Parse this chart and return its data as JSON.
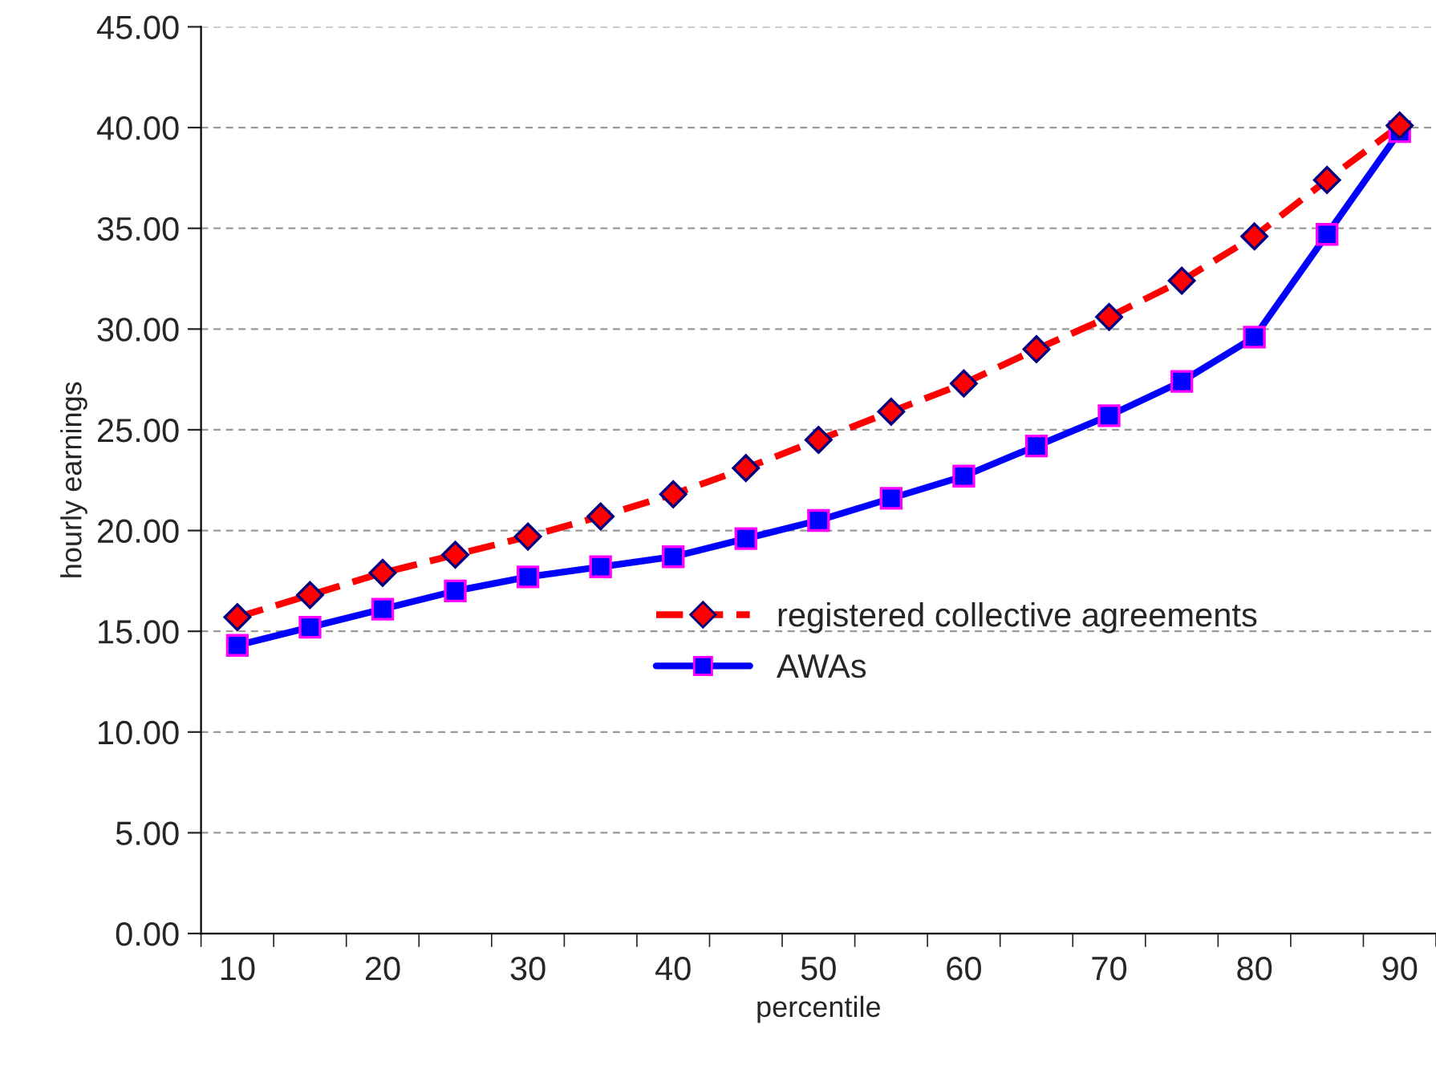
{
  "chart_data": {
    "type": "line",
    "xlabel": "percentile",
    "ylabel": "hourly earnings",
    "categories": [
      "10",
      null,
      "20",
      null,
      "30",
      null,
      "40",
      null,
      "50",
      null,
      "60",
      null,
      "70",
      null,
      "80",
      null,
      "90"
    ],
    "series": [
      {
        "name": "registered collective agreements",
        "color": "#ff0000",
        "line_style": "dashed",
        "marker": "diamond",
        "values": [
          15.7,
          16.8,
          17.9,
          18.8,
          19.7,
          20.7,
          21.8,
          23.1,
          24.5,
          25.9,
          27.3,
          29.0,
          30.6,
          32.4,
          34.6,
          37.4,
          40.1
        ]
      },
      {
        "name": "AWAs",
        "color": "#0000ff",
        "line_style": "solid",
        "marker": "square",
        "values": [
          14.3,
          15.2,
          16.1,
          17.0,
          17.7,
          18.2,
          18.7,
          19.6,
          20.5,
          21.6,
          22.7,
          24.2,
          25.7,
          27.4,
          29.6,
          34.7,
          39.8
        ]
      }
    ],
    "ylim": [
      0,
      45
    ],
    "yticks": [
      {
        "value": 0,
        "label": "0.00"
      },
      {
        "value": 5,
        "label": "5.00"
      },
      {
        "value": 10,
        "label": "10.00"
      },
      {
        "value": 15,
        "label": "15.00"
      },
      {
        "value": 20,
        "label": "20.00"
      },
      {
        "value": 25,
        "label": "25.00"
      },
      {
        "value": 30,
        "label": "30.00"
      },
      {
        "value": 35,
        "label": "35.00"
      },
      {
        "value": 40,
        "label": "40.00"
      },
      {
        "value": 45,
        "label": "45.00"
      }
    ],
    "grid": "y",
    "legend": "center right"
  }
}
